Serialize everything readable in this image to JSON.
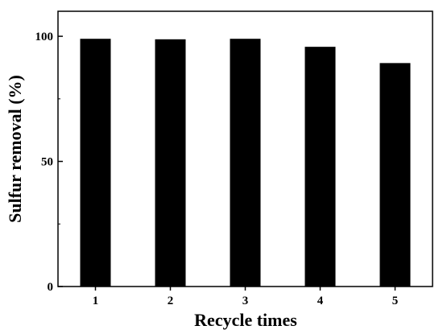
{
  "chart_data": {
    "type": "bar",
    "categories": [
      "1",
      "2",
      "3",
      "4",
      "5"
    ],
    "values": [
      99,
      98.8,
      99,
      95.8,
      89.3
    ],
    "xlabel": "Recycle times",
    "ylabel": "Sulfur removal (%)",
    "ylim": [
      0,
      110
    ],
    "yticks": [
      0,
      50,
      100
    ],
    "bar_color": "#000000",
    "grid": false,
    "legend": "none"
  }
}
